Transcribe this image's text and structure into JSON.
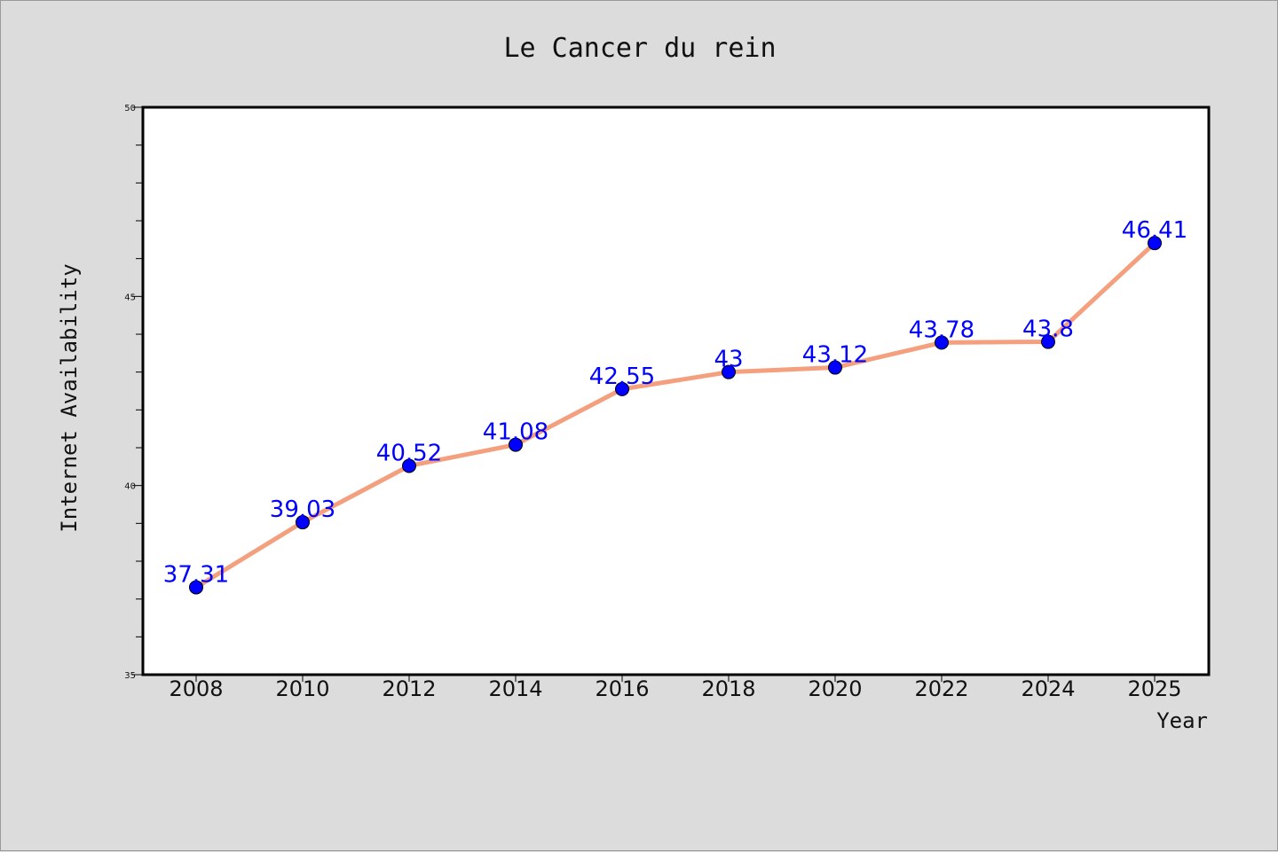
{
  "chart_data": {
    "type": "line",
    "title": "Le Cancer du rein",
    "xlabel": "Year",
    "ylabel": "Internet Availability",
    "categories": [
      "2008",
      "2010",
      "2012",
      "2014",
      "2016",
      "2018",
      "2020",
      "2022",
      "2024",
      "2025"
    ],
    "series": [
      {
        "values": [
          37.31,
          39.03,
          40.52,
          41.08,
          42.55,
          43,
          43.12,
          43.78,
          43.8,
          46.41
        ],
        "labels": [
          "37.31",
          "39.03",
          "40.52",
          "41.08",
          "42.55",
          "43",
          "43.12",
          "43.78",
          "43.8",
          "46.41"
        ],
        "line_color": "#f4a07e",
        "marker_color": "#0000ff",
        "label_color": "#0000ff"
      }
    ],
    "ylim": [
      35,
      50
    ],
    "yticks": [
      35,
      40,
      45,
      50
    ],
    "ytick_labels": [
      "35",
      "40",
      "45",
      "50"
    ],
    "y_minor_step": 1,
    "grid": false,
    "legend": "none"
  }
}
